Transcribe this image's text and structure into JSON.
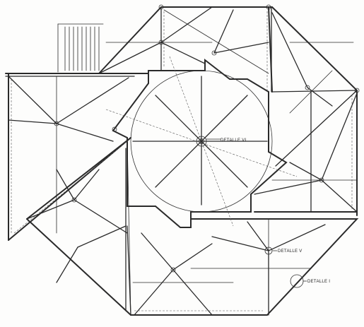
{
  "drawing": {
    "labels": {
      "detail_vi": "DETALLE VI",
      "detail_v": "DETALLE V",
      "detail_i": "DETALLE I"
    }
  }
}
